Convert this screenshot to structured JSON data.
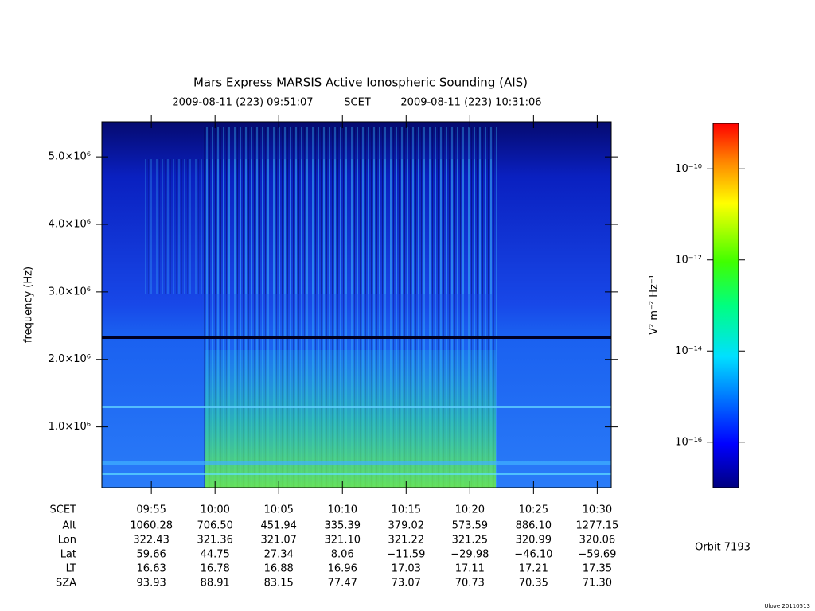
{
  "chart_data": {
    "type": "spectrogram",
    "title": "Mars Express MARSIS Active Ionospheric Sounding (AIS)",
    "subtitle": {
      "start": "2009-08-11 (223) 09:51:07",
      "time_system": "SCET",
      "end": "2009-08-11 (223) 10:31:06"
    },
    "ylabel": "frequency (Hz)",
    "ylim": [
      100000,
      5520000
    ],
    "yticks": [
      {
        "value": 1000000,
        "label": "1.0×10⁶"
      },
      {
        "value": 2000000,
        "label": "2.0×10⁶"
      },
      {
        "value": 3000000,
        "label": "3.0×10⁶"
      },
      {
        "value": 4000000,
        "label": "4.0×10⁶"
      },
      {
        "value": 5000000,
        "label": "5.0×10⁶"
      }
    ],
    "xlabel": "SCET",
    "xlim": [
      591.117,
      631.1
    ],
    "xticks": [
      {
        "value": 595,
        "label": "09:55"
      },
      {
        "value": 600,
        "label": "10:00"
      },
      {
        "value": 605,
        "label": "10:05"
      },
      {
        "value": 610,
        "label": "10:10"
      },
      {
        "value": 615,
        "label": "10:15"
      },
      {
        "value": 620,
        "label": "10:20"
      },
      {
        "value": 625,
        "label": "10:25"
      },
      {
        "value": 630,
        "label": "10:30"
      }
    ],
    "ephemeris": [
      {
        "name": "Alt",
        "values": [
          "1060.28",
          "706.50",
          "451.94",
          "335.39",
          "379.02",
          "573.59",
          "886.10",
          "1277.15"
        ]
      },
      {
        "name": "Lon",
        "values": [
          "322.43",
          "321.36",
          "321.07",
          "321.10",
          "321.22",
          "321.25",
          "320.99",
          "320.06"
        ]
      },
      {
        "name": "Lat",
        "values": [
          "59.66",
          "44.75",
          "27.34",
          "8.06",
          "−11.59",
          "−29.98",
          "−46.10",
          "−59.69"
        ]
      },
      {
        "name": "LT",
        "values": [
          "16.63",
          "16.78",
          "16.88",
          "16.96",
          "17.03",
          "17.11",
          "17.21",
          "17.35"
        ]
      },
      {
        "name": "SZA",
        "values": [
          "93.93",
          "88.91",
          "83.15",
          "77.47",
          "73.07",
          "70.73",
          "70.35",
          "71.30"
        ]
      }
    ],
    "colorbar": {
      "label": "V² m⁻² Hz⁻¹",
      "log": true,
      "zlim": [
        1e-17,
        1e-09
      ],
      "zticks": [
        {
          "value": 1e-10,
          "label": "10⁻¹⁰"
        },
        {
          "value": 1e-12,
          "label": "10⁻¹²"
        },
        {
          "value": 1e-14,
          "label": "10⁻¹⁴"
        },
        {
          "value": 1e-16,
          "label": "10⁻¹⁶"
        }
      ]
    },
    "orbit": "Orbit 7193",
    "footer": "Ulove 20110513"
  }
}
